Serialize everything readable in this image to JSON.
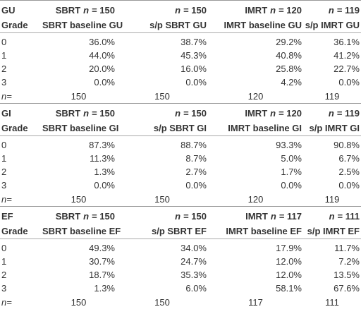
{
  "sections": [
    {
      "label": "GU",
      "grade": "Grade",
      "columns": [
        {
          "pre": "SBRT",
          "var": "n",
          "post": "= 150",
          "sub": "SBRT baseline GU"
        },
        {
          "pre": "",
          "var": "n",
          "post": "= 150",
          "sub": "s/p SBRT GU"
        },
        {
          "pre": "IMRT",
          "var": "n",
          "post": "= 120",
          "sub": "IMRT baseline GU"
        },
        {
          "pre": "",
          "var": "n",
          "post": "= 119",
          "sub": "s/p IMRT GU"
        }
      ],
      "rows": [
        [
          "0",
          "36.0%",
          "38.7%",
          "29.2%",
          "36.1%"
        ],
        [
          "1",
          "44.0%",
          "45.3%",
          "40.8%",
          "41.2%"
        ],
        [
          "2",
          "20.0%",
          "16.0%",
          "25.8%",
          "22.7%"
        ],
        [
          "3",
          "0.0%",
          "0.0%",
          "4.2%",
          "0.0%"
        ]
      ],
      "n_row": [
        "n=",
        "150",
        "150",
        "120",
        "119"
      ]
    },
    {
      "label": "GI",
      "grade": "Grade",
      "columns": [
        {
          "pre": "SBRT",
          "var": "n",
          "post": "= 150",
          "sub": "SBRT baseline GI"
        },
        {
          "pre": "",
          "var": "n",
          "post": "= 150",
          "sub": "s/p SBRT GI"
        },
        {
          "pre": "IMRT",
          "var": "n",
          "post": "= 120",
          "sub": "IMRT baseline GI"
        },
        {
          "pre": "",
          "var": "n",
          "post": "= 119",
          "sub": "s/p IMRT GI"
        }
      ],
      "rows": [
        [
          "0",
          "87.3%",
          "88.7%",
          "93.3%",
          "90.8%"
        ],
        [
          "1",
          "11.3%",
          "8.7%",
          "5.0%",
          "6.7%"
        ],
        [
          "2",
          "1.3%",
          "2.7%",
          "1.7%",
          "2.5%"
        ],
        [
          "3",
          "0.0%",
          "0.0%",
          "0.0%",
          "0.0%"
        ]
      ],
      "n_row": [
        "n=",
        "150",
        "150",
        "120",
        "119"
      ]
    },
    {
      "label": "EF",
      "grade": "Grade",
      "columns": [
        {
          "pre": "SBRT",
          "var": "n",
          "post": "= 150",
          "sub": "SBRT baseline EF"
        },
        {
          "pre": "",
          "var": "n",
          "post": "= 150",
          "sub": "s/p SBRT EF"
        },
        {
          "pre": "IMRT",
          "var": "n",
          "post": "= 117",
          "sub": "IMRT baseline EF"
        },
        {
          "pre": "",
          "var": "n",
          "post": "= 111",
          "sub": "s/p IMRT EF"
        }
      ],
      "rows": [
        [
          "0",
          "49.3%",
          "34.0%",
          "17.9%",
          "11.7%"
        ],
        [
          "1",
          "30.7%",
          "24.7%",
          "12.0%",
          "7.2%"
        ],
        [
          "2",
          "18.7%",
          "35.3%",
          "12.0%",
          "13.5%"
        ],
        [
          "3",
          "1.3%",
          "6.0%",
          "58.1%",
          "67.6%"
        ]
      ],
      "n_row": [
        "n=",
        "150",
        "150",
        "117",
        "111"
      ]
    }
  ]
}
